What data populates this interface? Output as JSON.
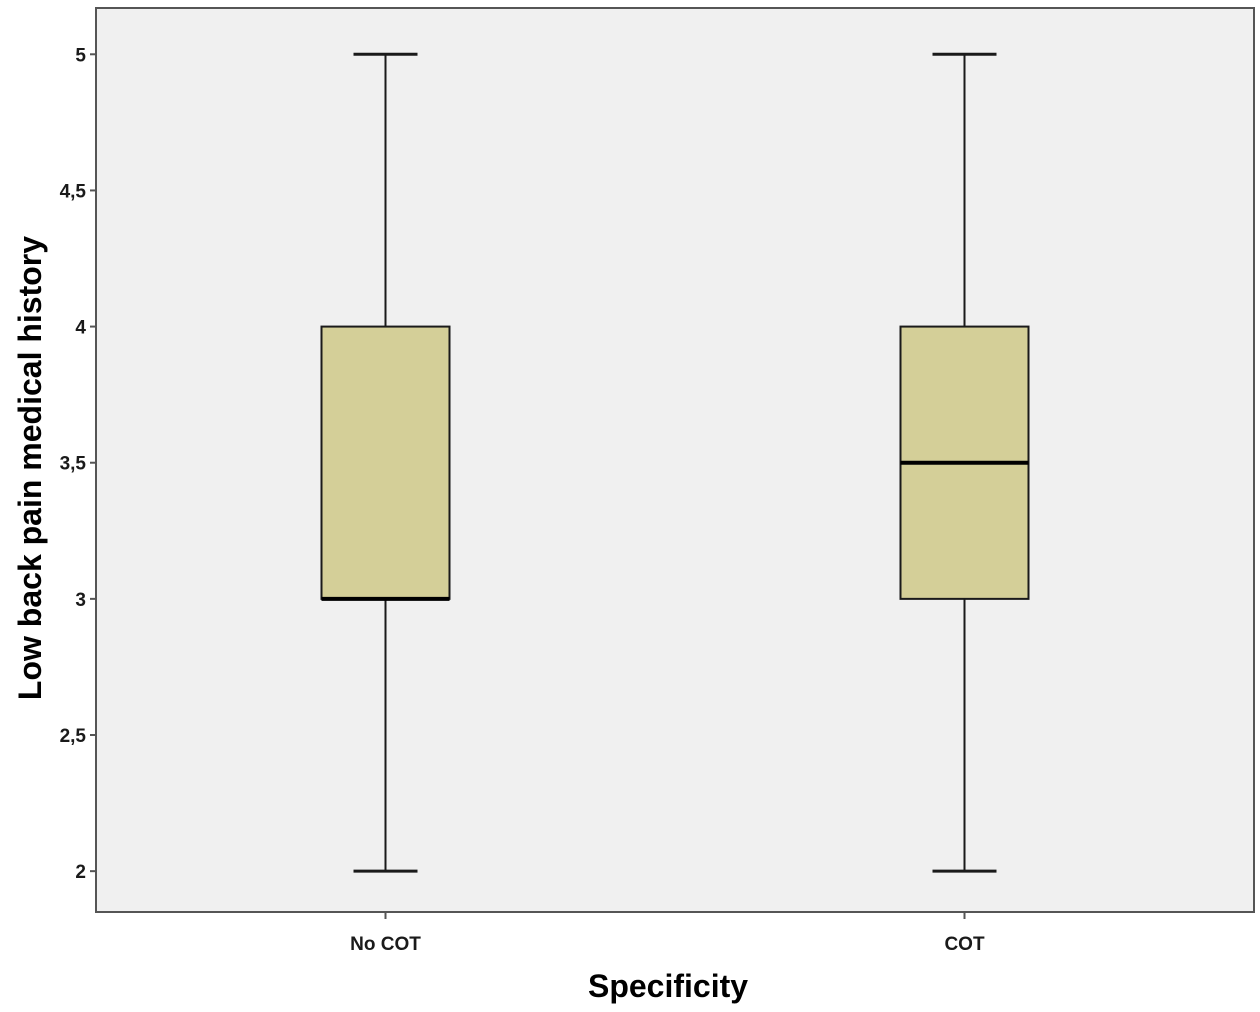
{
  "chart_data": {
    "type": "boxplot",
    "xlabel": "Specificity",
    "ylabel": "Low back pain medical history",
    "categories": [
      "No COT",
      "COT"
    ],
    "boxes": [
      {
        "category": "No COT",
        "min": 2,
        "q1": 3,
        "median": 3,
        "q3": 4,
        "max": 5
      },
      {
        "category": "COT",
        "min": 2,
        "q1": 3,
        "median": 3.5,
        "q3": 4,
        "max": 5
      }
    ],
    "ylim": [
      1.85,
      5.17
    ],
    "yticks": [
      2,
      2.5,
      3,
      3.5,
      4,
      4.5,
      5
    ],
    "ytick_labels": [
      "2",
      "2,5",
      "3",
      "3,5",
      "4",
      "4,5",
      "5"
    ],
    "grid": false,
    "colors": {
      "plot_background": "#f0f0f0",
      "box_fill": "#d4cf98",
      "line": "#1a1a1a",
      "frame": "#555555"
    }
  }
}
